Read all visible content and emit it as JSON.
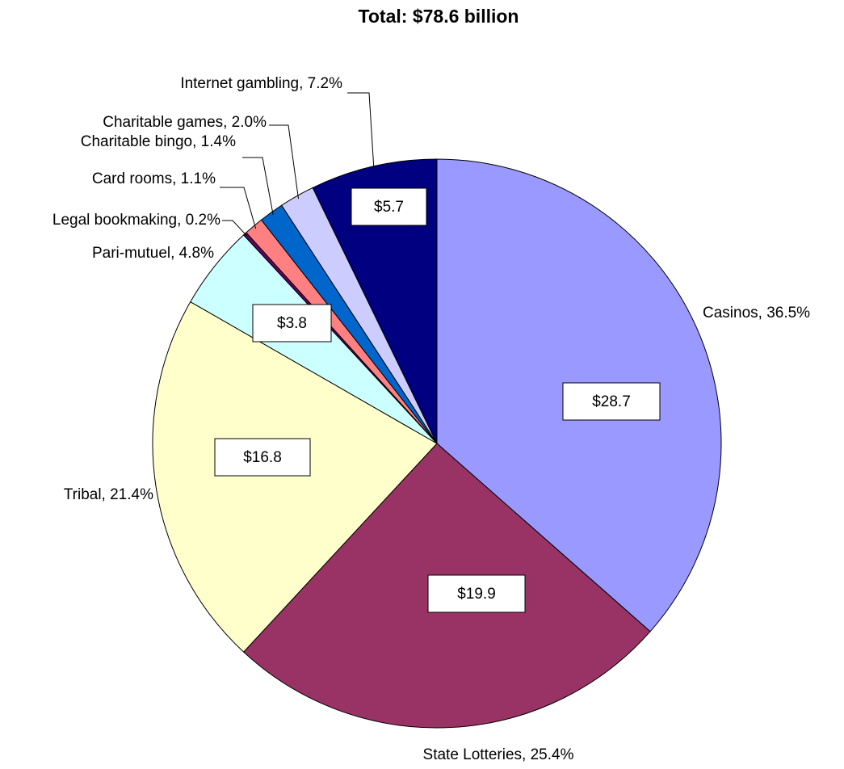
{
  "chart_data": {
    "type": "pie",
    "title": "Total: $78.6 billion",
    "value_labels": [
      "Casinos, 36.5%",
      "State Lotteries, 25.4%",
      "Tribal, 21.4%",
      "Pari-mutuel, 4.8%",
      "Legal bookmaking, 0.2%",
      "Card rooms, 1.1%",
      "Charitable bingo, 1.4%",
      "Charitable games, 2.0%",
      "Internet gambling, 7.2%"
    ],
    "values": [
      36.5,
      25.4,
      21.4,
      4.8,
      0.2,
      1.1,
      1.4,
      2.0,
      7.2
    ],
    "colors": [
      "#9999ff",
      "#993366",
      "#ffffcc",
      "#ccffff",
      "#660066",
      "#ff8080",
      "#0066cc",
      "#ccccff",
      "#000080"
    ],
    "amounts": [
      28.7,
      19.9,
      16.8,
      3.8,
      null,
      null,
      null,
      null,
      5.7
    ],
    "amount_labels": [
      "$28.7",
      "$19.9",
      "$16.8",
      "$3.8",
      null,
      null,
      null,
      null,
      "$5.7"
    ]
  }
}
